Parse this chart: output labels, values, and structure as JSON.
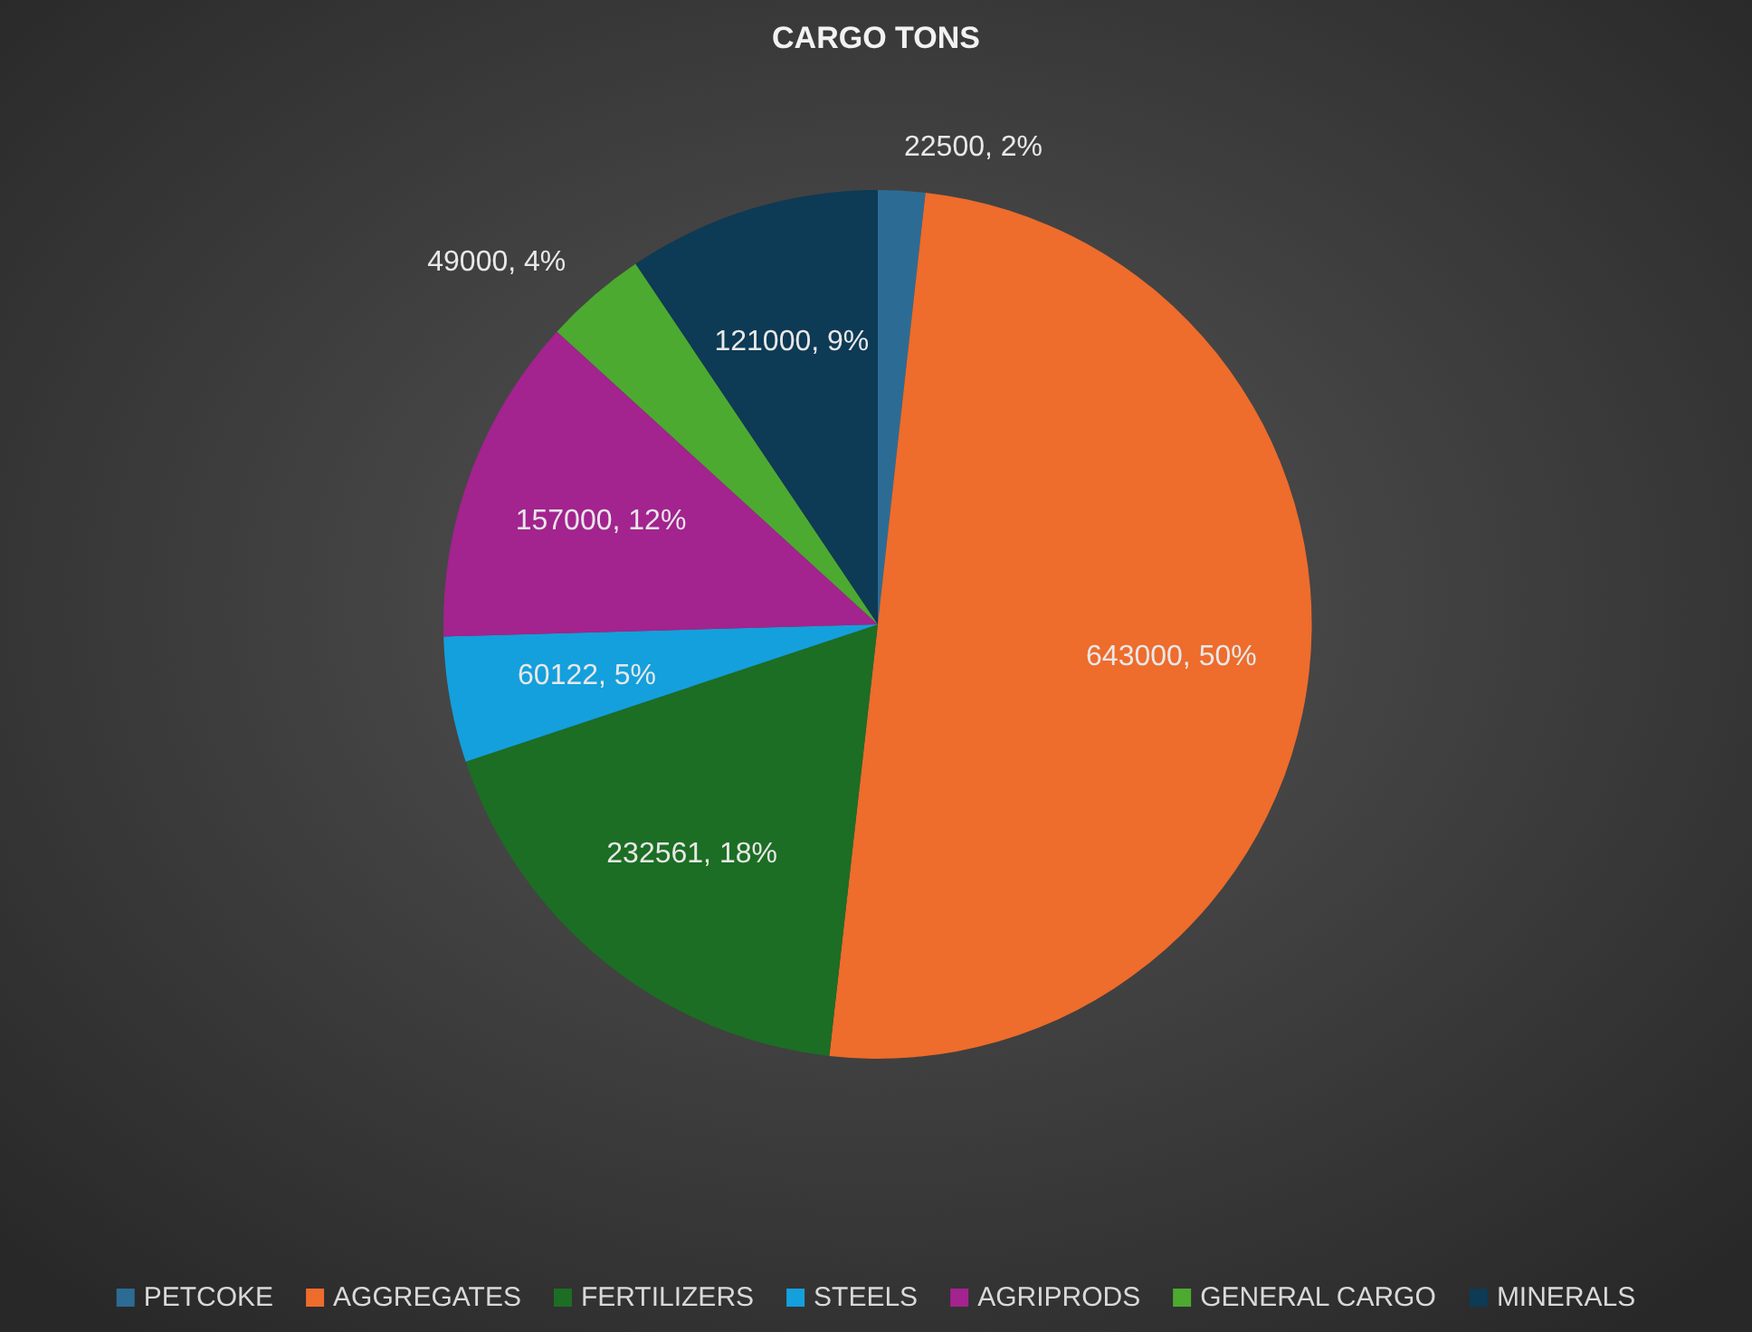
{
  "chart_data": {
    "type": "pie",
    "title": "CARGO TONS",
    "categories": [
      "PETCOKE",
      "AGGREGATES",
      "FERTILIZERS",
      "STEELS",
      "AGRIPRODS",
      "GENERAL CARGO",
      "MINERALS"
    ],
    "values": [
      22500,
      643000,
      232561,
      60122,
      157000,
      49000,
      121000
    ],
    "colors": [
      "#2c6c94",
      "#ee6c2c",
      "#1c6e24",
      "#14a0dc",
      "#a3238f",
      "#4caa30",
      "#0d3a55"
    ],
    "value_labels": [
      "22500, 2%",
      "643000, 50%",
      "232561, 18%",
      "60122, 5%",
      "157000, 12%",
      "49000, 4%",
      "121000, 9%"
    ],
    "legend": "bottom"
  }
}
